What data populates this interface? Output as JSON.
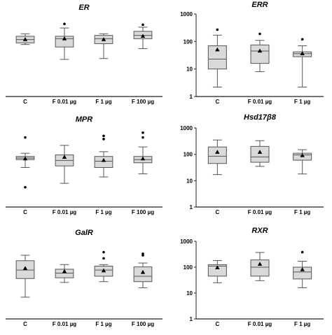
{
  "figure": {
    "colors": {
      "box_fill": "#d9d9d9",
      "stroke": "#555555",
      "axis": "#222222",
      "marker": "#000000"
    }
  },
  "chart_data": [
    {
      "type": "box",
      "title": "ER",
      "categories": [
        "C",
        "F 0.01 µg",
        "F 1 µg",
        "F 100 µg"
      ],
      "y_scale": "linear",
      "y_axis_shown": false,
      "ylim": [
        0,
        100
      ],
      "boxes": [
        {
          "whisker_low": 63,
          "q1": 65,
          "median": 69,
          "q3": 73,
          "whisker_high": 76,
          "mean": 69,
          "outliers": []
        },
        {
          "whisker_low": 45,
          "q1": 60,
          "median": 70,
          "q3": 73,
          "whisker_high": 83,
          "mean": 70,
          "outliers": [
            88
          ]
        },
        {
          "whisker_low": 46,
          "q1": 64,
          "median": 70,
          "q3": 74,
          "whisker_high": 76,
          "mean": 69,
          "outliers": []
        },
        {
          "whisker_low": 58,
          "q1": 70,
          "median": 74,
          "q3": 79,
          "whisker_high": 84,
          "mean": 73,
          "outliers": [
            87
          ]
        }
      ]
    },
    {
      "type": "box",
      "title": "ERR",
      "categories": [
        "C",
        "F 0.01 µg",
        "F 1 µg"
      ],
      "y_scale": "log",
      "y_axis_shown": true,
      "yticks": [
        "1",
        "10",
        "100",
        "1000"
      ],
      "ylim": [
        1,
        1000
      ],
      "boxes": [
        {
          "whisker_low": 2.2,
          "q1": 10,
          "median": 23,
          "q3": 70,
          "whisker_high": 170,
          "mean": 50,
          "outliers": [
            270
          ]
        },
        {
          "whisker_low": 8,
          "q1": 16,
          "median": 45,
          "q3": 75,
          "whisker_high": 110,
          "mean": 45,
          "outliers": [
            190
          ]
        },
        {
          "whisker_low": 2.2,
          "q1": 28,
          "median": 36,
          "q3": 42,
          "whisker_high": 70,
          "mean": 36,
          "outliers": [
            120
          ]
        }
      ]
    },
    {
      "type": "box",
      "title": "MPR",
      "categories": [
        "C",
        "F 0.01 µg",
        "F 1 µg",
        "F 100 µg"
      ],
      "y_scale": "linear",
      "y_axis_shown": false,
      "ylim": [
        0,
        100
      ],
      "boxes": [
        {
          "whisker_low": 50,
          "q1": 60,
          "median": 62,
          "q3": 64,
          "whisker_high": 68,
          "mean": 61,
          "outliers": [
            88,
            25
          ]
        },
        {
          "whisker_low": 30,
          "q1": 52,
          "median": 59,
          "q3": 66,
          "whisker_high": 78,
          "mean": 63,
          "outliers": []
        },
        {
          "whisker_low": 38,
          "q1": 50,
          "median": 58,
          "q3": 64,
          "whisker_high": 70,
          "mean": 59,
          "outliers": [
            86,
            90
          ]
        },
        {
          "whisker_low": 42,
          "q1": 56,
          "median": 60,
          "q3": 64,
          "whisker_high": 76,
          "mean": 61,
          "outliers": [
            88,
            94
          ]
        }
      ]
    },
    {
      "type": "box",
      "title": "Hsd17β8",
      "categories": [
        "C",
        "F 0.01 µg",
        "F 1 µg"
      ],
      "y_scale": "log",
      "y_axis_shown": true,
      "yticks": [
        "1",
        "10",
        "100",
        "1000"
      ],
      "ylim": [
        1,
        1000
      ],
      "boxes": [
        {
          "whisker_low": 17,
          "q1": 45,
          "median": 85,
          "q3": 190,
          "whisker_high": 350,
          "mean": 120,
          "outliers": []
        },
        {
          "whisker_low": 35,
          "q1": 50,
          "median": 80,
          "q3": 200,
          "whisker_high": 330,
          "mean": 120,
          "outliers": []
        },
        {
          "whisker_low": 18,
          "q1": 60,
          "median": 95,
          "q3": 110,
          "whisker_high": 150,
          "mean": 90,
          "outliers": []
        }
      ]
    },
    {
      "type": "box",
      "title": "GalR",
      "categories": [
        "C",
        "F 0.01 µg",
        "F 1 µg",
        "F 100 µg"
      ],
      "y_scale": "linear",
      "y_axis_shown": false,
      "ylim": [
        0,
        100
      ],
      "boxes": [
        {
          "whisker_low": 28,
          "q1": 52,
          "median": 63,
          "q3": 75,
          "whisker_high": 82,
          "mean": 65,
          "outliers": []
        },
        {
          "whisker_low": 47,
          "q1": 53,
          "median": 59,
          "q3": 64,
          "whisker_high": 70,
          "mean": 61,
          "outliers": []
        },
        {
          "whisker_low": 48,
          "q1": 55,
          "median": 63,
          "q3": 68,
          "whisker_high": 70,
          "mean": 62,
          "outliers": [
            78,
            86
          ]
        },
        {
          "whisker_low": 40,
          "q1": 48,
          "median": 55,
          "q3": 67,
          "whisker_high": 72,
          "mean": 60,
          "outliers": [
            82,
            84
          ]
        }
      ]
    },
    {
      "type": "box",
      "title": "RXR",
      "categories": [
        "C",
        "F 0.01 µg",
        "F 1 µg"
      ],
      "y_scale": "log",
      "y_axis_shown": true,
      "yticks": [
        "1",
        "10",
        "100",
        "1000"
      ],
      "ylim": [
        1,
        1000
      ],
      "boxes": [
        {
          "whisker_low": 25,
          "q1": 45,
          "median": 110,
          "q3": 125,
          "whisker_high": 180,
          "mean": 95,
          "outliers": []
        },
        {
          "whisker_low": 30,
          "q1": 45,
          "median": 100,
          "q3": 190,
          "whisker_high": 370,
          "mean": 130,
          "outliers": []
        },
        {
          "whisker_low": 16,
          "q1": 35,
          "median": 65,
          "q3": 100,
          "whisker_high": 170,
          "mean": 80,
          "outliers": [
            380
          ]
        }
      ]
    }
  ]
}
